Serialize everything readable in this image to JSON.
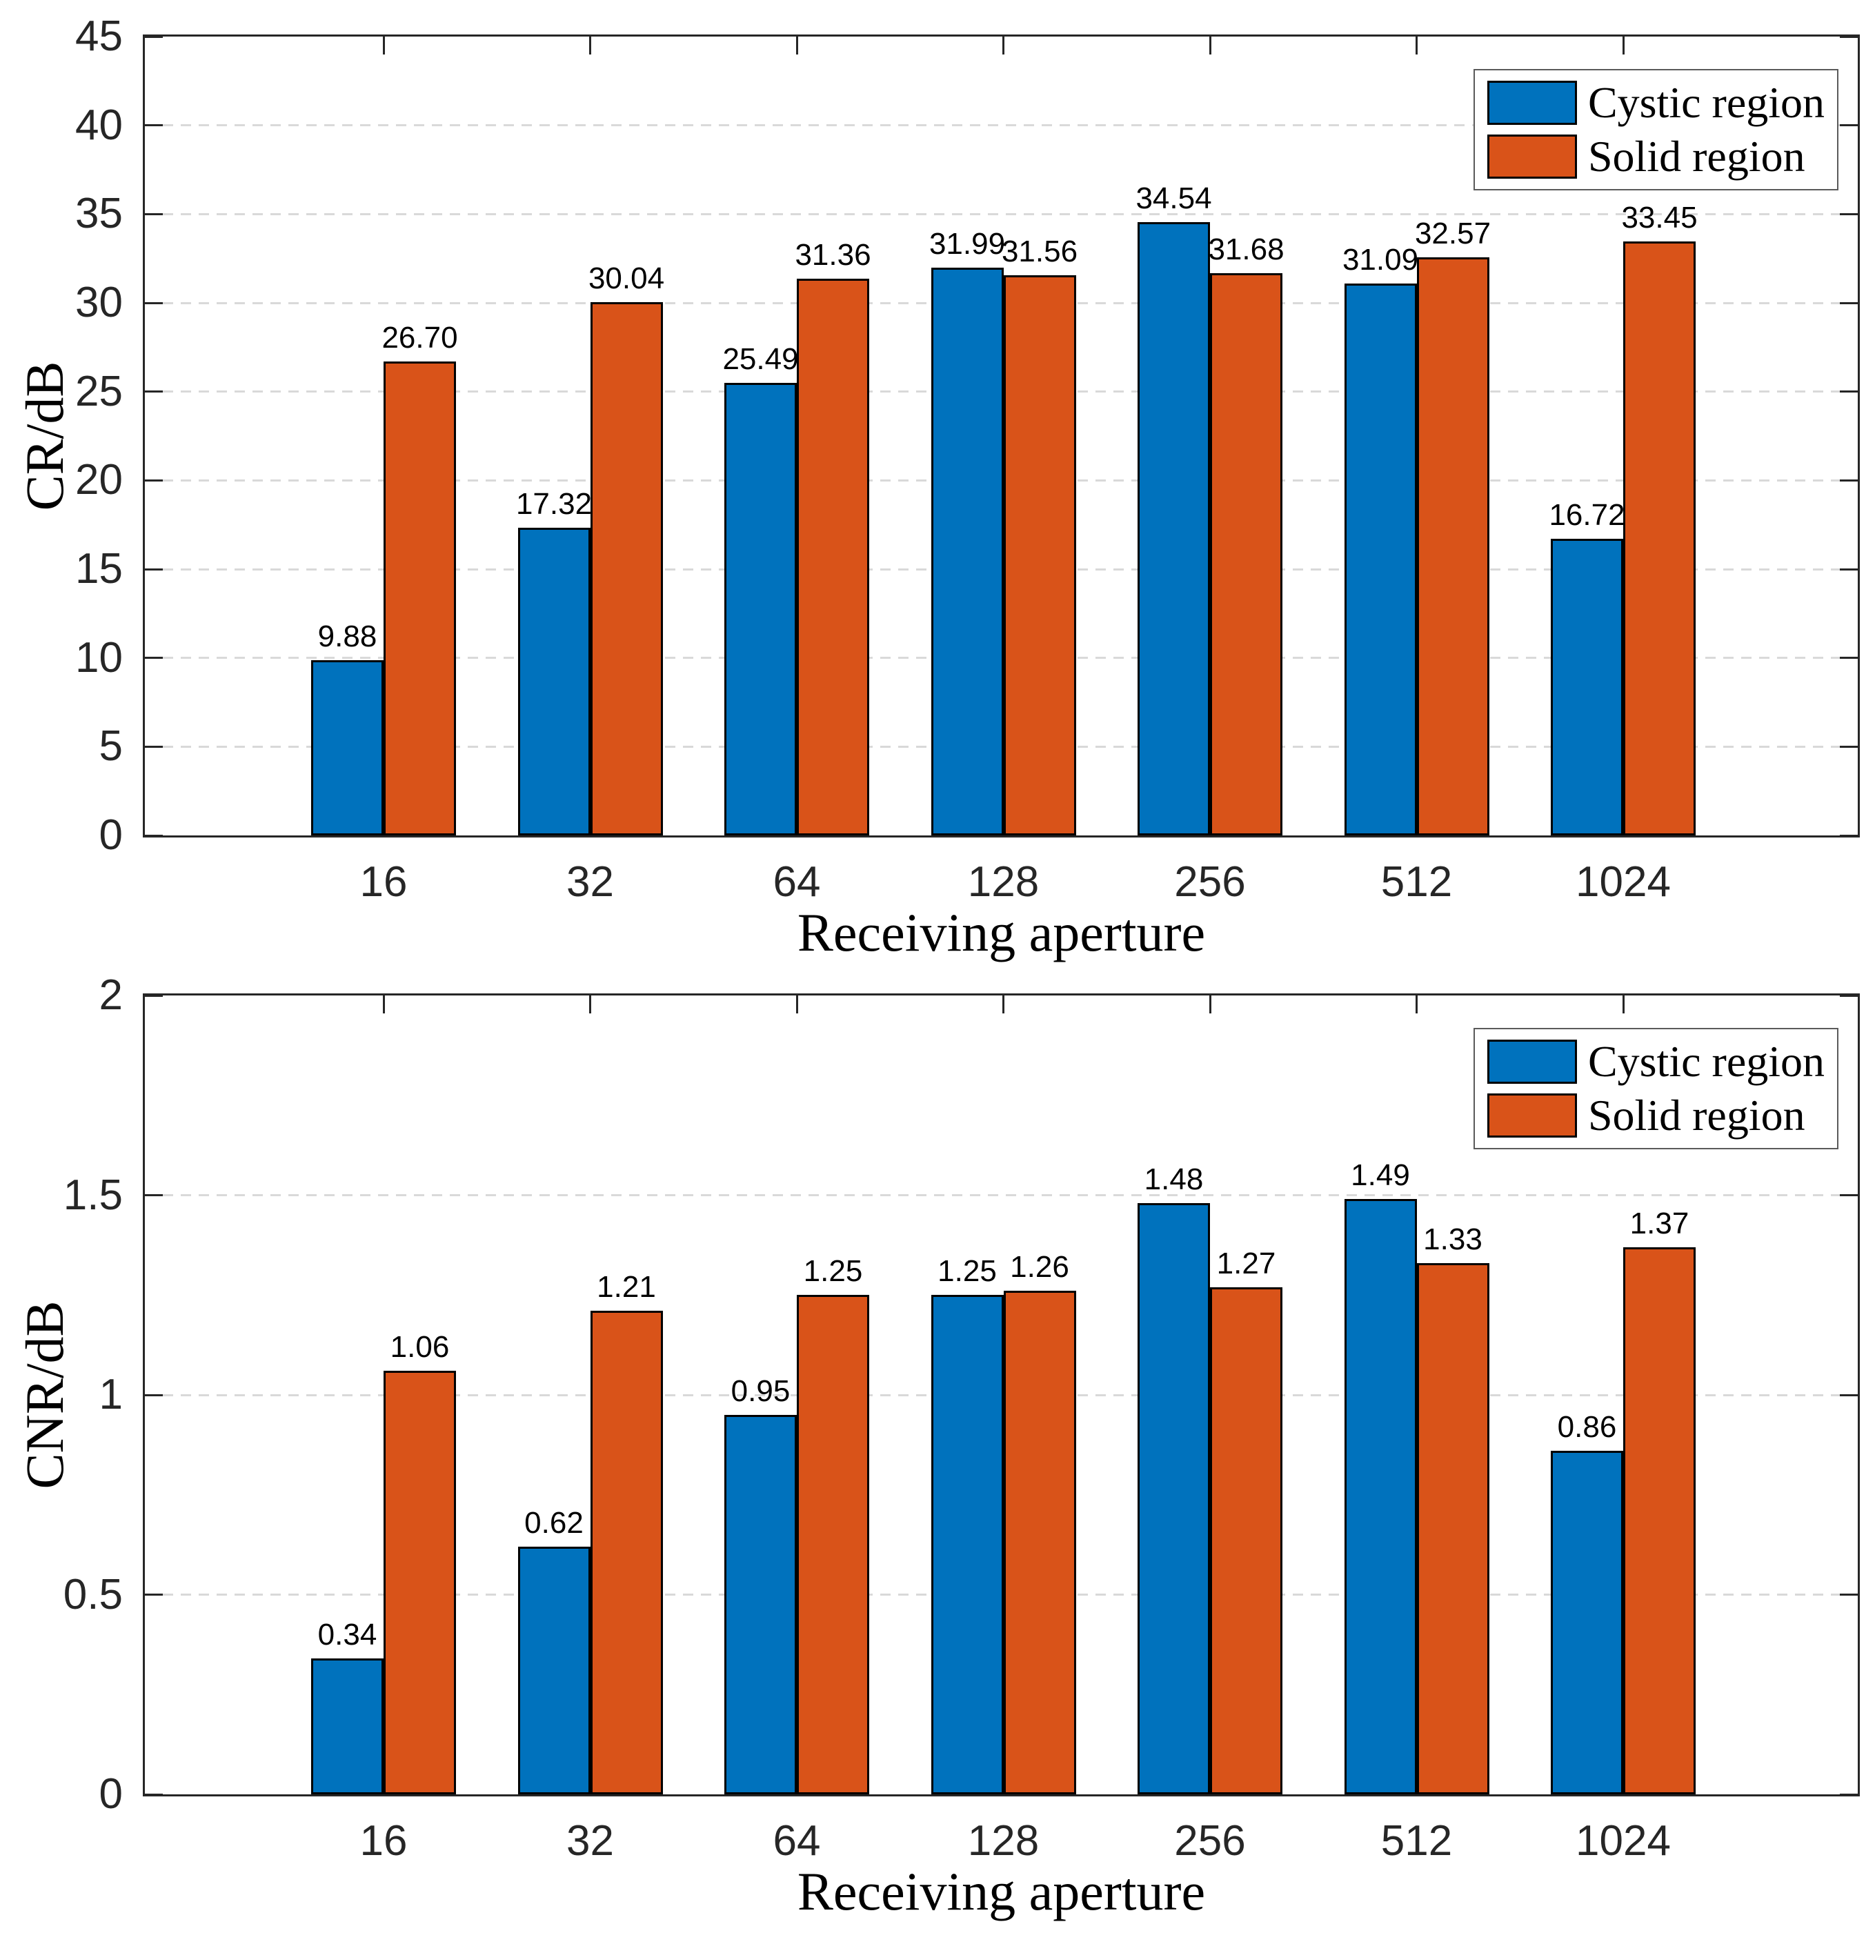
{
  "figure": {
    "background_color": "#FFFFFF",
    "axis_color": "#262626",
    "grid_color": "#D9D9D9",
    "bar_edge_color": "#000000",
    "series_colors": {
      "cystic": "#0072BD",
      "solid": "#D95319"
    }
  },
  "chart_data": [
    {
      "type": "bar",
      "title": "",
      "xlabel": "Receiving aperture",
      "ylabel": "CR/dB",
      "categories": [
        "16",
        "32",
        "64",
        "128",
        "256",
        "512",
        "1024"
      ],
      "series": [
        {
          "name": "Cystic region",
          "color": "#0072BD",
          "values": [
            9.88,
            17.32,
            25.49,
            31.99,
            34.54,
            31.09,
            16.72
          ]
        },
        {
          "name": "Solid region",
          "color": "#D95319",
          "values": [
            26.7,
            30.04,
            31.36,
            31.56,
            31.68,
            32.57,
            33.45
          ]
        }
      ],
      "ylim": [
        0,
        45
      ],
      "yticks": [
        0,
        5,
        10,
        15,
        20,
        25,
        30,
        35,
        40,
        45
      ],
      "ytick_labels": [
        "0",
        "5",
        "10",
        "15",
        "20",
        "25",
        "30",
        "35",
        "40",
        "45"
      ],
      "grid": "horizontal-dashed",
      "legend_position": "top-right-inside",
      "value_label_decimals": 2
    },
    {
      "type": "bar",
      "title": "",
      "xlabel": "Receiving aperture",
      "ylabel": "CNR/dB",
      "categories": [
        "16",
        "32",
        "64",
        "128",
        "256",
        "512",
        "1024"
      ],
      "series": [
        {
          "name": "Cystic region",
          "color": "#0072BD",
          "values": [
            0.34,
            0.62,
            0.95,
            1.25,
            1.48,
            1.49,
            0.86
          ]
        },
        {
          "name": "Solid region",
          "color": "#D95319",
          "values": [
            1.06,
            1.21,
            1.25,
            1.26,
            1.27,
            1.33,
            1.37
          ]
        }
      ],
      "ylim": [
        0,
        2
      ],
      "yticks": [
        0,
        0.5,
        1,
        1.5,
        2
      ],
      "ytick_labels": [
        "0",
        "0.5",
        "1",
        "1.5",
        "2"
      ],
      "grid": "horizontal-dashed",
      "legend_position": "top-right-inside",
      "value_label_decimals": 2
    }
  ]
}
